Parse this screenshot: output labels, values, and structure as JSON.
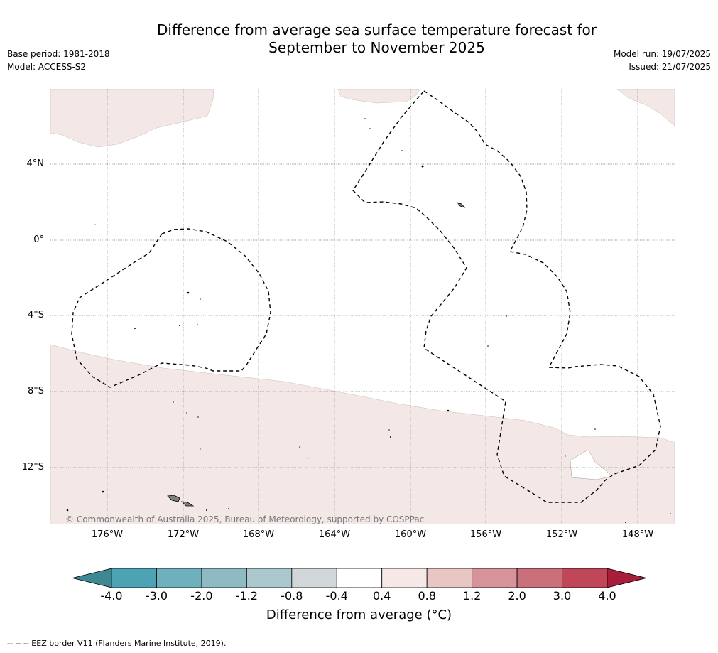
{
  "title_line1": "Difference from average sea surface temperature forecast for",
  "title_line2": "September to November 2025",
  "base_period": "Base period: 1981-2018",
  "model": "Model: ACCESS-S2",
  "model_run": "Model run: 19/07/2025",
  "issued": "Issued: 21/07/2025",
  "copyright": "© Commonwealth of Australia 2025, Bureau of Meteorology, supported by COSPPac",
  "lat_labels": [
    "4°N",
    "0°",
    "4°S",
    "8°S",
    "12°S"
  ],
  "lon_labels": [
    "176°W",
    "172°W",
    "168°W",
    "164°W",
    "160°W",
    "156°W",
    "152°W",
    "148°W"
  ],
  "colorbar": {
    "ticks": [
      "-4.0",
      "-3.0",
      "-2.0",
      "-1.2",
      "-0.8",
      "-0.4",
      "0.4",
      "0.8",
      "1.2",
      "2.0",
      "3.0",
      "4.0"
    ],
    "colors": [
      "#4da3b3",
      "#6fb0bd",
      "#8fbac4",
      "#aac8cd",
      "#d1d7d8",
      "#ffffff",
      "#f5e8e7",
      "#e8c6c3",
      "#d6939a",
      "#c9707b",
      "#bf4757"
    ],
    "under_color": "#3d8893",
    "over_color": "#a81d3a",
    "title": "Difference from average (°C)"
  },
  "map_fill": {
    "anomaly_color": "#f4e8e7",
    "neutral_color": "#ffffff",
    "island_color": "#808080"
  },
  "footer": "-- -- -- EEZ border V11 (Flanders Marine Institute, 2019)."
}
